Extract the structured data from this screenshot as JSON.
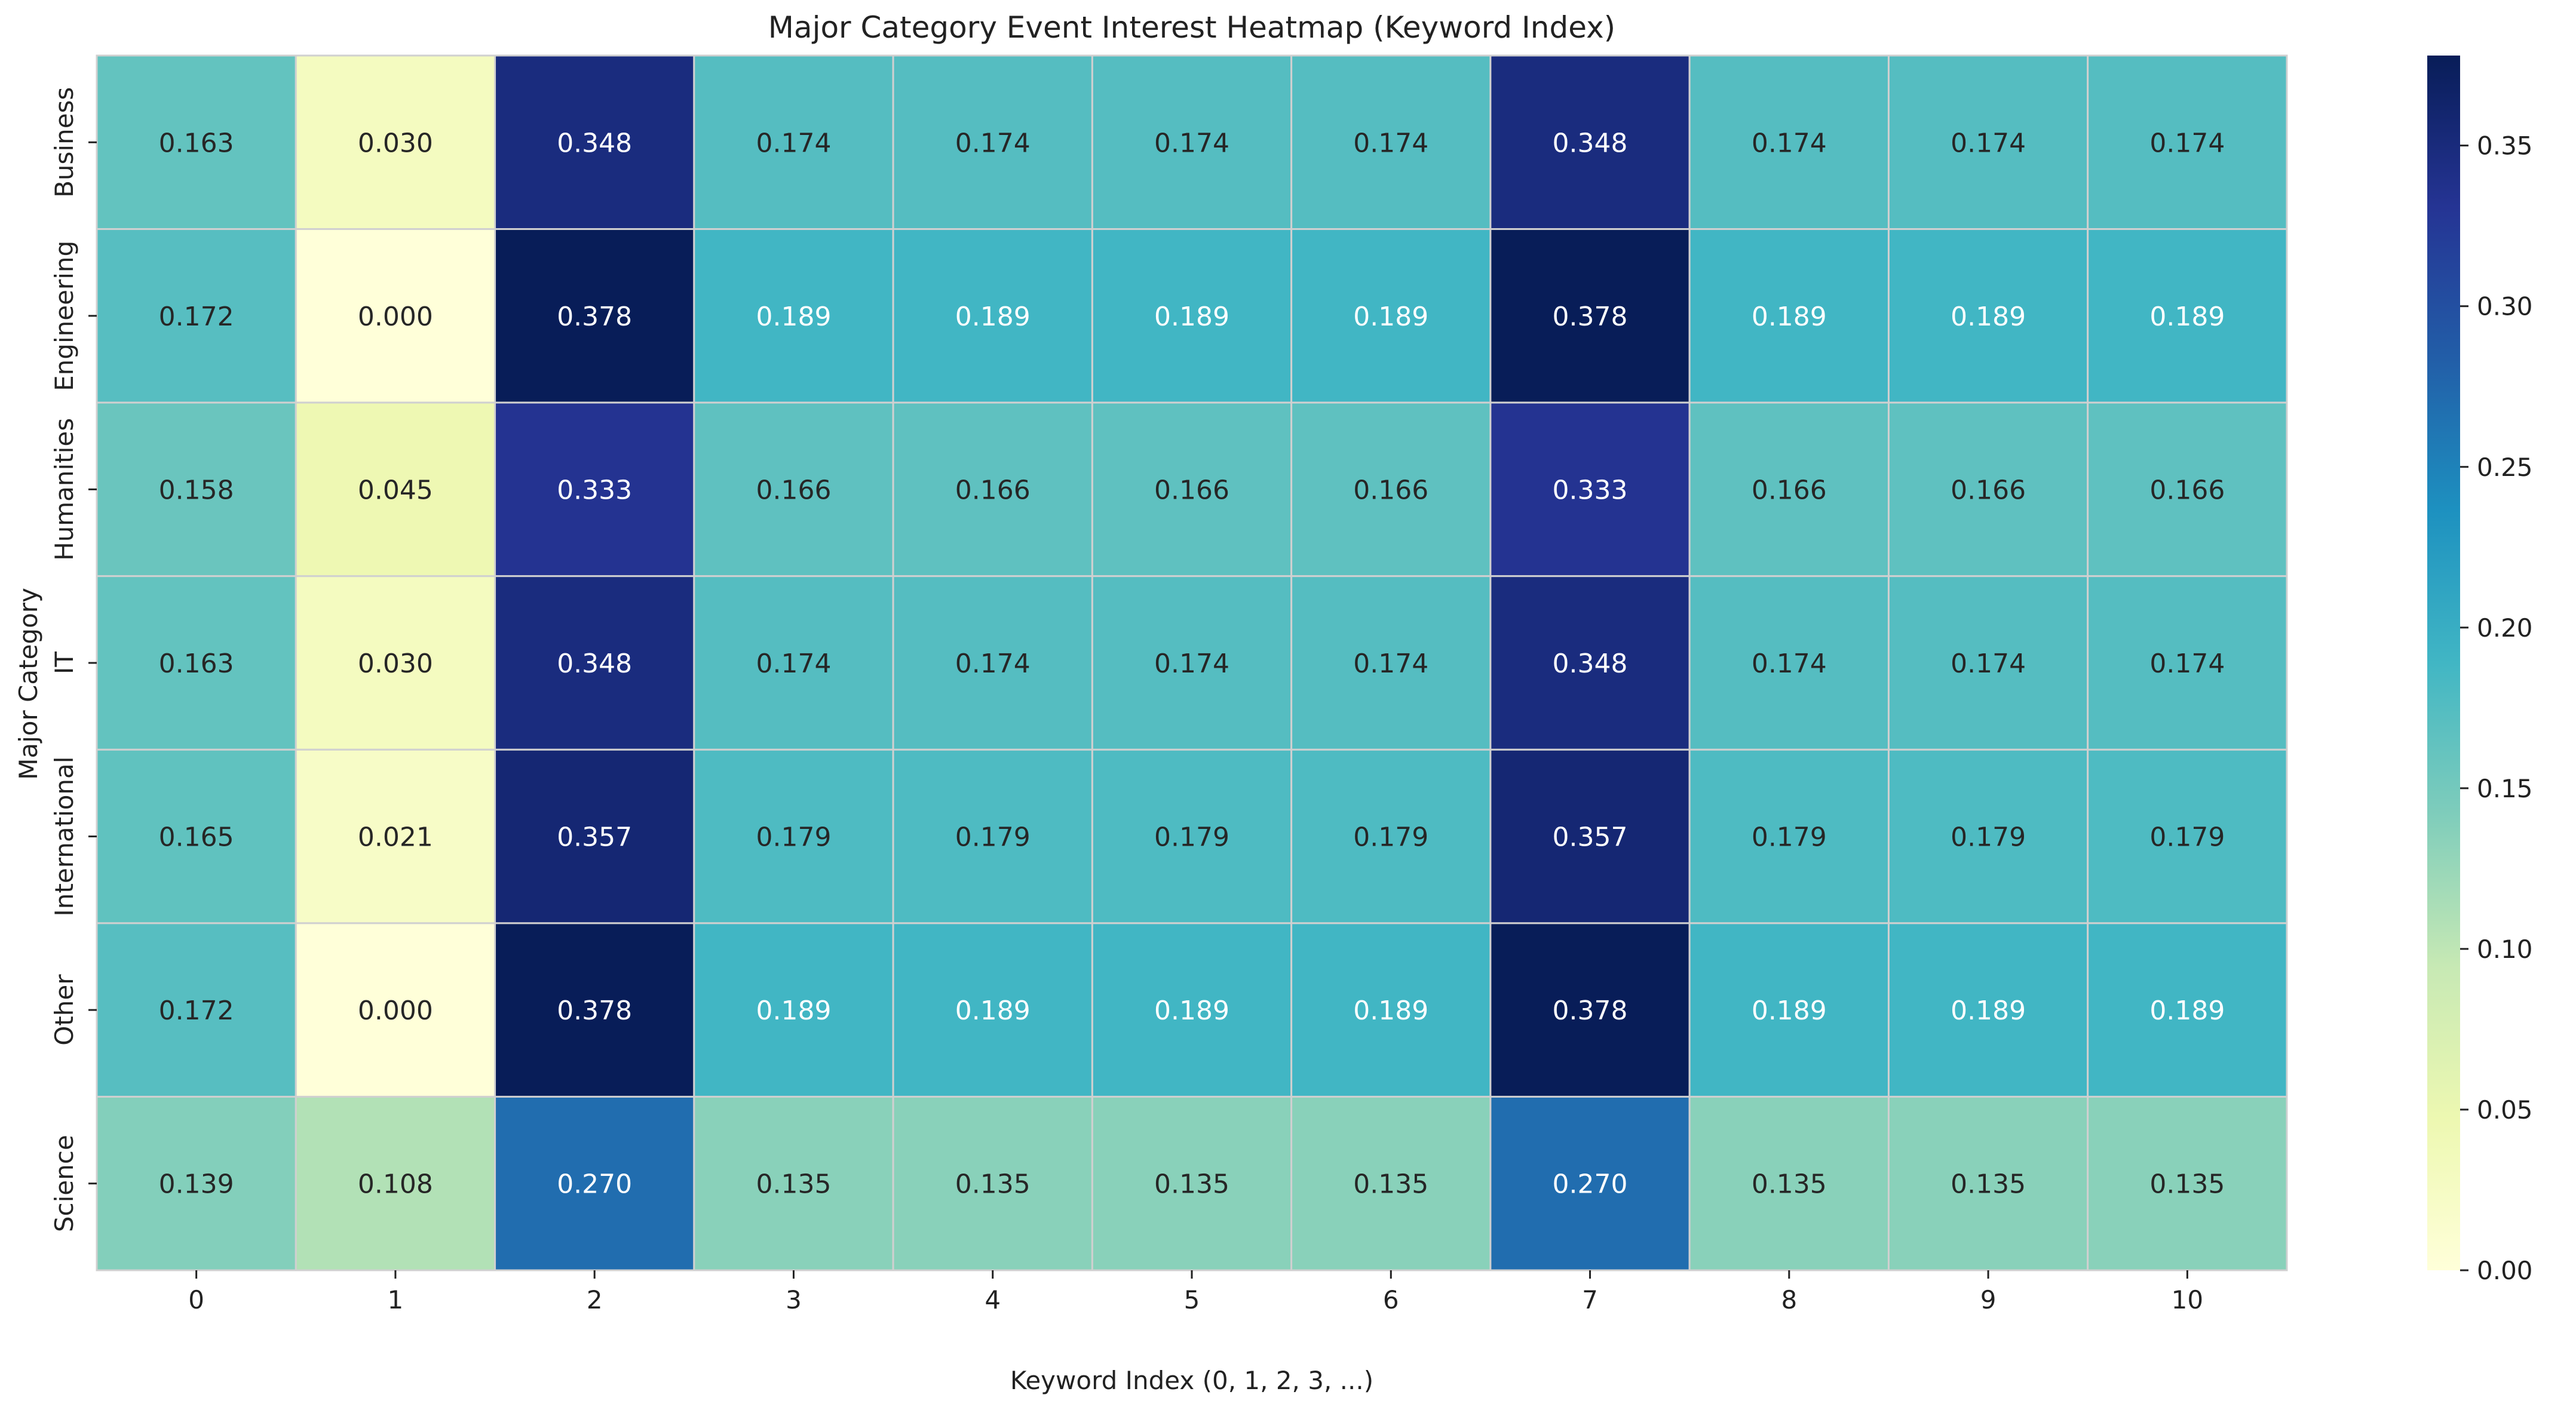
{
  "chart_data": {
    "type": "heatmap",
    "title": "Major Category Event Interest Heatmap (Keyword Index)",
    "xlabel": "Keyword Index (0, 1, 2, 3, ...)",
    "ylabel": "Major Category",
    "x_categories": [
      "0",
      "1",
      "2",
      "3",
      "4",
      "5",
      "6",
      "7",
      "8",
      "9",
      "10"
    ],
    "y_categories": [
      "Business",
      "Engineering",
      "Humanities",
      "IT",
      "International",
      "Other",
      "Science"
    ],
    "values": [
      [
        0.163,
        0.03,
        0.348,
        0.174,
        0.174,
        0.174,
        0.174,
        0.348,
        0.174,
        0.174,
        0.174
      ],
      [
        0.172,
        0.0,
        0.378,
        0.189,
        0.189,
        0.189,
        0.189,
        0.378,
        0.189,
        0.189,
        0.189
      ],
      [
        0.158,
        0.045,
        0.333,
        0.166,
        0.166,
        0.166,
        0.166,
        0.333,
        0.166,
        0.166,
        0.166
      ],
      [
        0.163,
        0.03,
        0.348,
        0.174,
        0.174,
        0.174,
        0.174,
        0.348,
        0.174,
        0.174,
        0.174
      ],
      [
        0.165,
        0.021,
        0.357,
        0.179,
        0.179,
        0.179,
        0.179,
        0.357,
        0.179,
        0.179,
        0.179
      ],
      [
        0.172,
        0.0,
        0.378,
        0.189,
        0.189,
        0.189,
        0.189,
        0.378,
        0.189,
        0.189,
        0.189
      ],
      [
        0.139,
        0.108,
        0.27,
        0.135,
        0.135,
        0.135,
        0.135,
        0.27,
        0.135,
        0.135,
        0.135
      ]
    ],
    "value_format": "3 decimals",
    "colormap": "YlGnBu",
    "colormap_stops": [
      "#ffffd9",
      "#edf8b1",
      "#c7e9b4",
      "#7fcdbb",
      "#41b6c4",
      "#1d91c0",
      "#225ea8",
      "#253494",
      "#081d58"
    ],
    "color_range": [
      0.0,
      0.378
    ],
    "colorbar_ticks": [
      "0.00",
      "0.05",
      "0.10",
      "0.15",
      "0.20",
      "0.25",
      "0.30",
      "0.35"
    ],
    "cell_border_color": "#d0d0d0",
    "grid": false,
    "legend": "colorbar-right"
  }
}
